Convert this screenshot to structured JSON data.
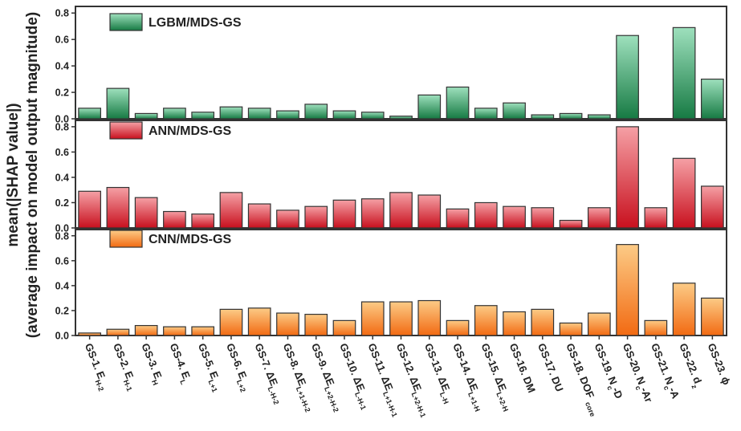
{
  "y_axis_label": {
    "line1": "mean(|SHAP value|)",
    "line2": "(average impact on model output magnitude)"
  },
  "x_tick_labels": [
    {
      "main": "GS-1. E",
      "sub": "H-2"
    },
    {
      "main": "GS-2. E",
      "sub": "H-1"
    },
    {
      "main": "GS-3. E",
      "sub": "H"
    },
    {
      "main": "GS-4. E",
      "sub": "L"
    },
    {
      "main": "GS-5. E",
      "sub": "L+1"
    },
    {
      "main": "GS-6. E",
      "sub": "L+2"
    },
    {
      "main": "GS-7. ΔE",
      "sub": "L-H-2"
    },
    {
      "main": "GS-8. ΔE",
      "sub": "L+1-H-2"
    },
    {
      "main": "GS-9. ΔE",
      "sub": "L+2-H-2"
    },
    {
      "main": "GS-10. ΔE",
      "sub": "L-H-1"
    },
    {
      "main": "GS-11. ΔE",
      "sub": "L+1-H-1"
    },
    {
      "main": "GS-12. ΔE",
      "sub": "L+2-H-1"
    },
    {
      "main": "GS-13. ΔE",
      "sub": "L-H"
    },
    {
      "main": "GS-14. ΔE",
      "sub": "L+1-H"
    },
    {
      "main": "GS-15. ΔE",
      "sub": "L+2-H"
    },
    {
      "main": "GS-16. DM",
      "sub": ""
    },
    {
      "main": "GS-17. DU",
      "sub": ""
    },
    {
      "main": "GS-18. DOF ",
      "sub": "core"
    },
    {
      "main": "GS-19. N",
      "sub": "c",
      "tail": "-D"
    },
    {
      "main": "GS-20. N",
      "sub": "c",
      "tail": "-Ar"
    },
    {
      "main": "GS-21. N",
      "sub": "c",
      "tail": "-A"
    },
    {
      "main": "GS-22. d",
      "sub": "z"
    },
    {
      "main": "GS-23. ϕ",
      "sub": ""
    }
  ],
  "chart_data": [
    {
      "type": "bar",
      "legend": "LGBM/MDS-GS",
      "ylim": [
        0,
        0.85
      ],
      "yticks": [
        "0.0",
        "0.2",
        "0.4",
        "0.6",
        "0.8"
      ],
      "values": [
        0.08,
        0.23,
        0.04,
        0.08,
        0.05,
        0.09,
        0.08,
        0.06,
        0.11,
        0.06,
        0.05,
        0.02,
        0.18,
        0.24,
        0.08,
        0.12,
        0.03,
        0.04,
        0.03,
        0.63,
        0.0,
        0.69,
        0.3
      ],
      "colors": {
        "light": "#9ee0bd",
        "dark": "#167a43"
      }
    },
    {
      "type": "bar",
      "legend": "ANN/MDS-GS",
      "ylim": [
        0,
        0.85
      ],
      "yticks": [
        "0.0",
        "0.2",
        "0.4",
        "0.6",
        "0.8"
      ],
      "values": [
        0.29,
        0.32,
        0.24,
        0.13,
        0.11,
        0.28,
        0.19,
        0.14,
        0.17,
        0.22,
        0.23,
        0.28,
        0.26,
        0.15,
        0.2,
        0.17,
        0.16,
        0.06,
        0.16,
        0.8,
        0.16,
        0.55,
        0.33
      ],
      "colors": {
        "light": "#f5a0a5",
        "dark": "#c8101e"
      }
    },
    {
      "type": "bar",
      "legend": "CNN/MDS-GS",
      "ylim": [
        0,
        0.85
      ],
      "yticks": [
        "0.0",
        "0.2",
        "0.4",
        "0.6",
        "0.8"
      ],
      "values": [
        0.02,
        0.05,
        0.08,
        0.07,
        0.07,
        0.21,
        0.22,
        0.18,
        0.17,
        0.12,
        0.27,
        0.27,
        0.28,
        0.12,
        0.24,
        0.19,
        0.21,
        0.1,
        0.18,
        0.73,
        0.12,
        0.42,
        0.3
      ],
      "colors": {
        "light": "#fccb86",
        "dark": "#f26a12"
      }
    }
  ]
}
